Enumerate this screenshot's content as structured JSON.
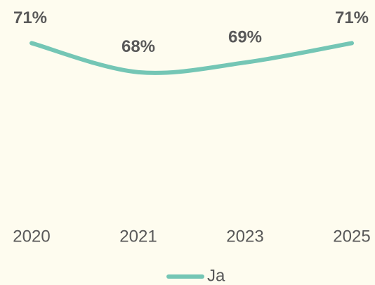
{
  "chart_data": {
    "type": "line",
    "categories": [
      "2020",
      "2021",
      "2023",
      "2025"
    ],
    "series": [
      {
        "name": "Ja",
        "color": "#74c6b5",
        "values": [
          71,
          68,
          69,
          71
        ],
        "value_labels": [
          "71%",
          "68%",
          "69%",
          "71%"
        ]
      }
    ],
    "ylim": [
      53,
      74
    ],
    "grid": false,
    "legend": "bottom"
  }
}
